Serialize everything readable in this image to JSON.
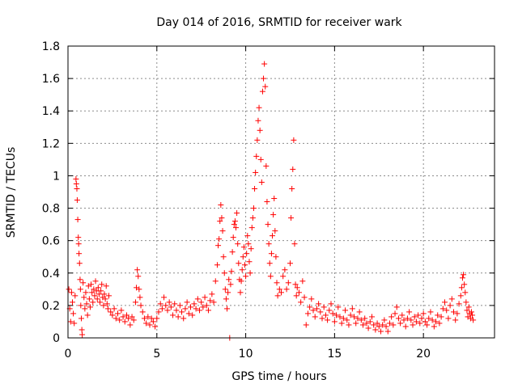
{
  "chart_data": {
    "type": "scatter",
    "title": "Day 014 of 2016, SRMTID for receiver wark",
    "xlabel": "GPS time / hours",
    "ylabel": "SRMTID / TECUs",
    "xlim": [
      0,
      24
    ],
    "ylim": [
      0,
      1.8
    ],
    "xticks": [
      0,
      5,
      10,
      15,
      20
    ],
    "yticks": [
      0,
      0.2,
      0.4,
      0.6,
      0.8,
      1,
      1.2,
      1.4,
      1.6,
      1.8
    ],
    "xtick_labels": [
      "0",
      "5",
      "10",
      "15",
      "20"
    ],
    "ytick_labels": [
      "0",
      "0.2",
      "0.4",
      "0.6",
      "0.8",
      "1",
      "1.2",
      "1.4",
      "1.6",
      "1.8"
    ],
    "grid": true,
    "marker": "+",
    "color": "#ff0000",
    "series": [
      {
        "name": "SRMTID",
        "points": [
          [
            0.05,
            0.3
          ],
          [
            0.1,
            0.18
          ],
          [
            0.15,
            0.1
          ],
          [
            0.2,
            0.28
          ],
          [
            0.25,
            0.22
          ],
          [
            0.3,
            0.15
          ],
          [
            0.35,
            0.09
          ],
          [
            0.4,
            0.26
          ],
          [
            0.45,
            0.98
          ],
          [
            0.47,
            0.95
          ],
          [
            0.5,
            0.92
          ],
          [
            0.52,
            0.85
          ],
          [
            0.55,
            0.73
          ],
          [
            0.58,
            0.62
          ],
          [
            0.6,
            0.58
          ],
          [
            0.62,
            0.52
          ],
          [
            0.65,
            0.46
          ],
          [
            0.68,
            0.36
          ],
          [
            0.7,
            0.3
          ],
          [
            0.72,
            0.2
          ],
          [
            0.75,
            0.12
          ],
          [
            0.78,
            0.05
          ],
          [
            0.8,
            0.02
          ],
          [
            0.85,
            0.34
          ],
          [
            0.9,
            0.25
          ],
          [
            0.95,
            0.18
          ],
          [
            1.0,
            0.28
          ],
          [
            1.05,
            0.21
          ],
          [
            1.1,
            0.14
          ],
          [
            1.15,
            0.32
          ],
          [
            1.2,
            0.24
          ],
          [
            1.25,
            0.19
          ],
          [
            1.3,
            0.33
          ],
          [
            1.35,
            0.28
          ],
          [
            1.4,
            0.22
          ],
          [
            1.45,
            0.3
          ],
          [
            1.5,
            0.26
          ],
          [
            1.55,
            0.35
          ],
          [
            1.6,
            0.29
          ],
          [
            1.65,
            0.24
          ],
          [
            1.7,
            0.31
          ],
          [
            1.75,
            0.27
          ],
          [
            1.8,
            0.22
          ],
          [
            1.85,
            0.29
          ],
          [
            1.9,
            0.33
          ],
          [
            1.95,
            0.25
          ],
          [
            2.0,
            0.2
          ],
          [
            2.05,
            0.27
          ],
          [
            2.1,
            0.24
          ],
          [
            2.15,
            0.32
          ],
          [
            2.2,
            0.21
          ],
          [
            2.25,
            0.18
          ],
          [
            2.3,
            0.26
          ],
          [
            2.4,
            0.16
          ],
          [
            2.5,
            0.14
          ],
          [
            2.6,
            0.18
          ],
          [
            2.7,
            0.12
          ],
          [
            2.8,
            0.15
          ],
          [
            2.9,
            0.11
          ],
          [
            3.0,
            0.17
          ],
          [
            3.1,
            0.13
          ],
          [
            3.2,
            0.1
          ],
          [
            3.3,
            0.14
          ],
          [
            3.4,
            0.12
          ],
          [
            3.5,
            0.08
          ],
          [
            3.6,
            0.13
          ],
          [
            3.7,
            0.11
          ],
          [
            3.8,
            0.22
          ],
          [
            3.85,
            0.31
          ],
          [
            3.9,
            0.42
          ],
          [
            3.95,
            0.38
          ],
          [
            4.0,
            0.3
          ],
          [
            4.05,
            0.25
          ],
          [
            4.1,
            0.2
          ],
          [
            4.2,
            0.16
          ],
          [
            4.3,
            0.12
          ],
          [
            4.4,
            0.09
          ],
          [
            4.5,
            0.13
          ],
          [
            4.6,
            0.08
          ],
          [
            4.7,
            0.12
          ],
          [
            4.8,
            0.1
          ],
          [
            4.9,
            0.07
          ],
          [
            5.0,
            0.12
          ],
          [
            5.1,
            0.16
          ],
          [
            5.2,
            0.21
          ],
          [
            5.3,
            0.18
          ],
          [
            5.4,
            0.25
          ],
          [
            5.5,
            0.2
          ],
          [
            5.6,
            0.17
          ],
          [
            5.7,
            0.22
          ],
          [
            5.8,
            0.19
          ],
          [
            5.9,
            0.14
          ],
          [
            6.0,
            0.21
          ],
          [
            6.1,
            0.17
          ],
          [
            6.2,
            0.13
          ],
          [
            6.3,
            0.2
          ],
          [
            6.4,
            0.16
          ],
          [
            6.5,
            0.12
          ],
          [
            6.6,
            0.18
          ],
          [
            6.7,
            0.22
          ],
          [
            6.8,
            0.15
          ],
          [
            6.9,
            0.19
          ],
          [
            7.0,
            0.14
          ],
          [
            7.1,
            0.21
          ],
          [
            7.2,
            0.18
          ],
          [
            7.3,
            0.24
          ],
          [
            7.4,
            0.17
          ],
          [
            7.5,
            0.22
          ],
          [
            7.6,
            0.19
          ],
          [
            7.7,
            0.25
          ],
          [
            7.8,
            0.2
          ],
          [
            7.9,
            0.17
          ],
          [
            8.0,
            0.23
          ],
          [
            8.1,
            0.27
          ],
          [
            8.2,
            0.22
          ],
          [
            8.3,
            0.35
          ],
          [
            8.4,
            0.45
          ],
          [
            8.45,
            0.57
          ],
          [
            8.5,
            0.61
          ],
          [
            8.55,
            0.72
          ],
          [
            8.6,
            0.82
          ],
          [
            8.65,
            0.74
          ],
          [
            8.7,
            0.66
          ],
          [
            8.75,
            0.5
          ],
          [
            8.8,
            0.4
          ],
          [
            8.85,
            0.3
          ],
          [
            8.9,
            0.24
          ],
          [
            8.95,
            0.18
          ],
          [
            9.0,
            0.28
          ],
          [
            9.05,
            0.36
          ],
          [
            9.1,
            0.0
          ],
          [
            9.15,
            0.33
          ],
          [
            9.2,
            0.41
          ],
          [
            9.25,
            0.53
          ],
          [
            9.3,
            0.62
          ],
          [
            9.35,
            0.7
          ],
          [
            9.4,
            0.72
          ],
          [
            9.45,
            0.68
          ],
          [
            9.5,
            0.77
          ],
          [
            9.55,
            0.58
          ],
          [
            9.6,
            0.46
          ],
          [
            9.65,
            0.36
          ],
          [
            9.7,
            0.28
          ],
          [
            9.75,
            0.35
          ],
          [
            9.8,
            0.42
          ],
          [
            9.85,
            0.5
          ],
          [
            9.9,
            0.56
          ],
          [
            9.95,
            0.45
          ],
          [
            10.0,
            0.38
          ],
          [
            10.05,
            0.52
          ],
          [
            10.1,
            0.63
          ],
          [
            10.15,
            0.58
          ],
          [
            10.2,
            0.47
          ],
          [
            10.25,
            0.4
          ],
          [
            10.3,
            0.55
          ],
          [
            10.35,
            0.68
          ],
          [
            10.4,
            0.74
          ],
          [
            10.45,
            0.8
          ],
          [
            10.5,
            0.92
          ],
          [
            10.55,
            1.02
          ],
          [
            10.6,
            1.12
          ],
          [
            10.65,
            1.22
          ],
          [
            10.7,
            1.34
          ],
          [
            10.75,
            1.42
          ],
          [
            10.8,
            1.28
          ],
          [
            10.85,
            1.1
          ],
          [
            10.9,
            0.96
          ],
          [
            10.95,
            1.52
          ],
          [
            11.0,
            1.6
          ],
          [
            11.05,
            1.69
          ],
          [
            11.1,
            1.55
          ],
          [
            11.15,
            1.06
          ],
          [
            11.2,
            0.84
          ],
          [
            11.25,
            0.7
          ],
          [
            11.3,
            0.58
          ],
          [
            11.35,
            0.46
          ],
          [
            11.4,
            0.38
          ],
          [
            11.45,
            0.52
          ],
          [
            11.5,
            0.63
          ],
          [
            11.55,
            0.76
          ],
          [
            11.6,
            0.86
          ],
          [
            11.65,
            0.66
          ],
          [
            11.7,
            0.5
          ],
          [
            11.75,
            0.34
          ],
          [
            11.8,
            0.26
          ],
          [
            11.9,
            0.3
          ],
          [
            12.0,
            0.28
          ],
          [
            12.1,
            0.38
          ],
          [
            12.2,
            0.42
          ],
          [
            12.3,
            0.3
          ],
          [
            12.4,
            0.34
          ],
          [
            12.5,
            0.46
          ],
          [
            12.55,
            0.74
          ],
          [
            12.6,
            0.92
          ],
          [
            12.65,
            1.04
          ],
          [
            12.7,
            1.22
          ],
          [
            12.75,
            0.58
          ],
          [
            12.8,
            0.33
          ],
          [
            12.85,
            0.26
          ],
          [
            12.9,
            0.31
          ],
          [
            13.0,
            0.28
          ],
          [
            13.1,
            0.22
          ],
          [
            13.2,
            0.35
          ],
          [
            13.3,
            0.25
          ],
          [
            13.4,
            0.08
          ],
          [
            13.5,
            0.15
          ],
          [
            13.6,
            0.19
          ],
          [
            13.7,
            0.24
          ],
          [
            13.8,
            0.17
          ],
          [
            13.9,
            0.13
          ],
          [
            14.0,
            0.18
          ],
          [
            14.1,
            0.21
          ],
          [
            14.2,
            0.16
          ],
          [
            14.3,
            0.12
          ],
          [
            14.4,
            0.19
          ],
          [
            14.5,
            0.14
          ],
          [
            14.6,
            0.11
          ],
          [
            14.7,
            0.17
          ],
          [
            14.8,
            0.21
          ],
          [
            14.9,
            0.15
          ],
          [
            15.0,
            0.1
          ],
          [
            15.1,
            0.14
          ],
          [
            15.2,
            0.19
          ],
          [
            15.3,
            0.13
          ],
          [
            15.4,
            0.09
          ],
          [
            15.5,
            0.12
          ],
          [
            15.6,
            0.17
          ],
          [
            15.7,
            0.11
          ],
          [
            15.8,
            0.08
          ],
          [
            15.9,
            0.14
          ],
          [
            16.0,
            0.18
          ],
          [
            16.1,
            0.13
          ],
          [
            16.2,
            0.09
          ],
          [
            16.3,
            0.12
          ],
          [
            16.4,
            0.16
          ],
          [
            16.5,
            0.11
          ],
          [
            16.6,
            0.08
          ],
          [
            16.7,
            0.12
          ],
          [
            16.8,
            0.09
          ],
          [
            16.9,
            0.06
          ],
          [
            17.0,
            0.1
          ],
          [
            17.1,
            0.13
          ],
          [
            17.2,
            0.08
          ],
          [
            17.3,
            0.05
          ],
          [
            17.4,
            0.09
          ],
          [
            17.5,
            0.07
          ],
          [
            17.6,
            0.04
          ],
          [
            17.7,
            0.08
          ],
          [
            17.8,
            0.11
          ],
          [
            17.9,
            0.07
          ],
          [
            18.0,
            0.04
          ],
          [
            18.1,
            0.09
          ],
          [
            18.2,
            0.13
          ],
          [
            18.3,
            0.08
          ],
          [
            18.4,
            0.15
          ],
          [
            18.5,
            0.19
          ],
          [
            18.6,
            0.12
          ],
          [
            18.7,
            0.09
          ],
          [
            18.8,
            0.14
          ],
          [
            18.9,
            0.11
          ],
          [
            19.0,
            0.07
          ],
          [
            19.1,
            0.12
          ],
          [
            19.2,
            0.16
          ],
          [
            19.3,
            0.11
          ],
          [
            19.4,
            0.08
          ],
          [
            19.5,
            0.13
          ],
          [
            19.6,
            0.1
          ],
          [
            19.7,
            0.14
          ],
          [
            19.8,
            0.09
          ],
          [
            19.9,
            0.12
          ],
          [
            20.0,
            0.15
          ],
          [
            20.1,
            0.1
          ],
          [
            20.2,
            0.08
          ],
          [
            20.3,
            0.12
          ],
          [
            20.4,
            0.16
          ],
          [
            20.5,
            0.11
          ],
          [
            20.6,
            0.07
          ],
          [
            20.7,
            0.1
          ],
          [
            20.8,
            0.14
          ],
          [
            20.9,
            0.09
          ],
          [
            21.0,
            0.13
          ],
          [
            21.1,
            0.18
          ],
          [
            21.2,
            0.22
          ],
          [
            21.3,
            0.17
          ],
          [
            21.4,
            0.12
          ],
          [
            21.5,
            0.2
          ],
          [
            21.6,
            0.24
          ],
          [
            21.7,
            0.16
          ],
          [
            21.8,
            0.11
          ],
          [
            21.9,
            0.15
          ],
          [
            22.0,
            0.21
          ],
          [
            22.1,
            0.26
          ],
          [
            22.15,
            0.31
          ],
          [
            22.2,
            0.37
          ],
          [
            22.25,
            0.39
          ],
          [
            22.3,
            0.33
          ],
          [
            22.35,
            0.28
          ],
          [
            22.4,
            0.22
          ],
          [
            22.45,
            0.17
          ],
          [
            22.5,
            0.13
          ],
          [
            22.55,
            0.19
          ],
          [
            22.6,
            0.15
          ],
          [
            22.65,
            0.12
          ],
          [
            22.7,
            0.16
          ],
          [
            22.75,
            0.14
          ],
          [
            22.8,
            0.11
          ]
        ]
      }
    ]
  }
}
